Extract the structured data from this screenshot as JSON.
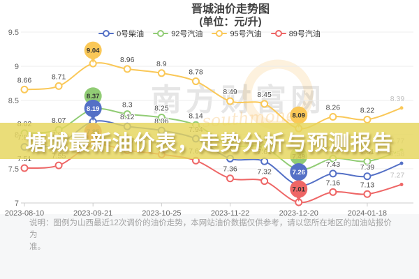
{
  "title": {
    "line1": "晋城油价走势图",
    "line2": "(单位：元/升)"
  },
  "banner": {
    "text": "塘城最新油价表，走势分析与预测报告",
    "bg_color": "#e5d55c"
  },
  "note": {
    "line1": "说明：图例为山西最近12次调价的油价走势，本网站油价数据仅供参考，请以您所在地区的加油站报价为",
    "line2": "准。"
  },
  "watermark": {
    "text": "南方财富网",
    "subtext": "southmoney"
  },
  "chart_data": {
    "type": "line",
    "title": "晋城油价走势图 (单位：元/升)",
    "n_points": 12,
    "x_tick_labels": [
      "2023-08-10",
      "2023-09-21",
      "2023-10-25",
      "2023-11-22",
      "2023-12-20",
      "2024-01-18"
    ],
    "x_tick_point_indices": [
      0,
      2,
      4,
      6,
      8,
      10
    ],
    "ylim": [
      7,
      9.5
    ],
    "y_tick_labels": [
      "7",
      "7.5",
      "8",
      "8.5",
      "9",
      "9.5"
    ],
    "y_tick_values": [
      7,
      7.5,
      8,
      8.5,
      9,
      9.5
    ],
    "grid": true,
    "legend_position": "top",
    "smooth": true,
    "max_pin_index": 2,
    "min_pin_index": 8,
    "series": [
      {
        "name": "0号柴油",
        "color": "#5470c6",
        "pin_text_color": "#ffffff",
        "values": [
          7.82,
          7.86,
          8.19,
          8.12,
          8.06,
          7.94,
          7.65,
          7.61,
          7.26,
          7.43,
          7.39,
          7.58
        ]
      },
      {
        "name": "92号汽油",
        "color": "#91cc75",
        "pin_text_color": "#333333",
        "values": [
          8.02,
          8.07,
          8.37,
          8.3,
          8.25,
          8.14,
          7.85,
          7.81,
          7.49,
          7.65,
          7.61,
          7.77
        ]
      },
      {
        "name": "95号汽油",
        "color": "#fac858",
        "pin_text_color": "#333333",
        "values": [
          8.66,
          8.71,
          9.04,
          8.96,
          8.9,
          8.78,
          8.49,
          8.45,
          8.09,
          8.26,
          8.22,
          8.39
        ]
      },
      {
        "name": "89号汽油",
        "color": "#ee6666",
        "pin_text_color": "#333333",
        "values": [
          7.51,
          7.55,
          7.85,
          7.77,
          7.71,
          7.62,
          7.36,
          7.32,
          7.01,
          7.16,
          7.13,
          7.27
        ]
      }
    ],
    "label_color": "#4a4a4a",
    "last_label_color": "#bdbdbd",
    "axis_label_color": "#666666",
    "grid_color": "#ececec",
    "axis_line_color": "#cccccc"
  }
}
